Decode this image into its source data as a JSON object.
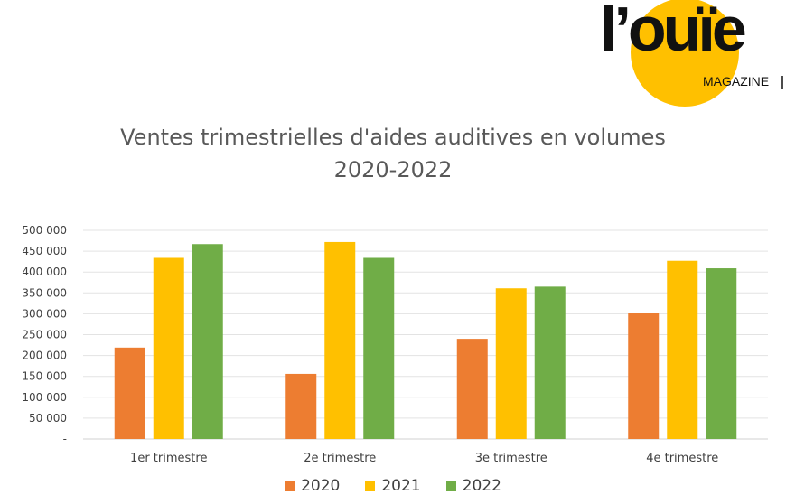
{
  "logo": {
    "text": "l’ouïe",
    "subtitle": "MAGAZINE",
    "circle_color": "#FFC000"
  },
  "chart_data": {
    "type": "bar",
    "title": "Ventes trimestrielles d'aides auditives en volumes",
    "subtitle": "2020-2022",
    "categories": [
      "1er trimestre",
      "2e trimestre",
      "3e trimestre",
      "4e trimestre"
    ],
    "series": [
      {
        "name": "2020",
        "color": "#ED7D31",
        "values": [
          219000,
          156000,
          240000,
          303000
        ]
      },
      {
        "name": "2021",
        "color": "#FFC000",
        "values": [
          434000,
          472000,
          361000,
          427000
        ]
      },
      {
        "name": "2022",
        "color": "#70AD47",
        "values": [
          467000,
          434000,
          365000,
          409000
        ]
      }
    ],
    "yticks": [
      "-",
      "50 000",
      "100 000",
      "150 000",
      "200 000",
      "250 000",
      "300 000",
      "350 000",
      "400 000",
      "450 000",
      "500 000"
    ],
    "ylim": [
      0,
      500000
    ],
    "grid": true,
    "legend": "bottom"
  }
}
